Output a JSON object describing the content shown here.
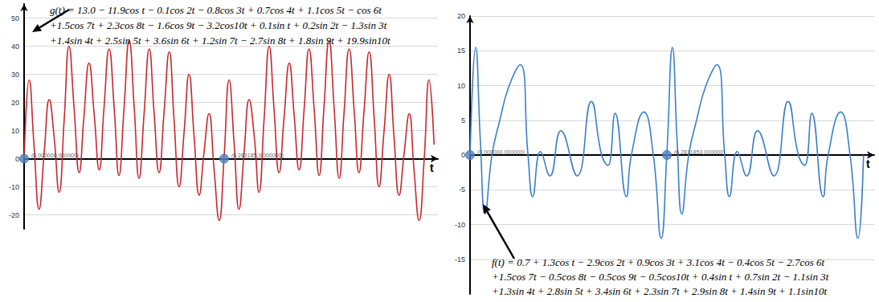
{
  "chart_data": [
    {
      "type": "line",
      "annotations": [
        "g(t) = 13.0 − 11.9cos t − 0.1cos 2t − 0.8cos 3t + 0.7cos 4t + 1.1cos 5t − cos 6t",
        "+1.5cos 7t + 2.3cos 8t − 1.6cos 9t − 3.2cos10t + 0.1sin t + 0.2sin 2t − 1.3sin 3t",
        "+1.4sin 4t + 2.5sin 5t + 3.6sin 6t + 1.2sin 7t − 2.7sin 8t + 1.8sin 9t + 19.9sin10t"
      ],
      "x_label": "t",
      "x": [
        0,
        0.16,
        0.31,
        0.47,
        0.63,
        0.79,
        0.94,
        1.1,
        1.26,
        1.41,
        1.57,
        1.73,
        1.88,
        2.04,
        2.2,
        2.36,
        2.51,
        2.67,
        2.83,
        2.98,
        3.14,
        3.3,
        3.46,
        3.61,
        3.77,
        3.93,
        4.08,
        4.24,
        4.4,
        4.56,
        4.71,
        4.87,
        5.03,
        5.18,
        5.34,
        5.5,
        5.65,
        5.81,
        5.97,
        6.13,
        6.28,
        6.44,
        6.6,
        6.75,
        6.91,
        7.07,
        7.23,
        7.38,
        7.54,
        7.7,
        7.85,
        8.01,
        8.17,
        8.33,
        8.48,
        8.64,
        8.8,
        8.95,
        9.11,
        9.27,
        9.42,
        9.58,
        9.74,
        9.9,
        10.05,
        10.21,
        10.37,
        10.52,
        10.68,
        10.84,
        11.0,
        11.15,
        11.31,
        11.47,
        11.62,
        11.78,
        11.94,
        12.1,
        12.25,
        12.41,
        12.57,
        12.72,
        12.88
      ],
      "series": [
        {
          "color": "#c8282d",
          "values": [
            0,
            28,
            5,
            -18,
            2,
            21,
            8,
            -12,
            14,
            40,
            18,
            -5,
            15,
            34,
            16,
            -4,
            18,
            39,
            18,
            -6,
            18,
            42,
            18,
            -7,
            16,
            39,
            17,
            -5,
            17,
            38,
            14,
            -10,
            10,
            30,
            8,
            -13,
            2,
            16,
            -4,
            -22,
            0,
            28,
            5,
            -18,
            2,
            21,
            8,
            -12,
            14,
            40,
            18,
            -5,
            15,
            34,
            16,
            -4,
            18,
            39,
            18,
            -6,
            18,
            42,
            18,
            -7,
            16,
            39,
            17,
            -5,
            17,
            38,
            14,
            -10,
            10,
            30,
            8,
            -13,
            2,
            16,
            -4,
            -22,
            0,
            28,
            5
          ]
        }
      ],
      "points": [
        {
          "x": 0,
          "y": 0,
          "label": "(0.000000,000000)"
        },
        {
          "x": 6.283185,
          "y": 0,
          "label": "(6.283185,0.000000)"
        }
      ],
      "xlim": [
        0,
        13
      ],
      "ylim": [
        -25,
        55
      ],
      "yticks": [
        -20,
        -10,
        0,
        10,
        20,
        30,
        40,
        50
      ],
      "grid": true,
      "tick_labels": "y"
    },
    {
      "type": "line",
      "annotations": [
        "f(t) = 0.7 + 1.3cos t − 2.9cos 2t + 0.9cos 3t + 3.1cos 4t − 0.4cos 5t − 2.7cos 6t",
        "+1.5cos 7t − 0.5cos 8t − 0.5cos 9t − 0.5cos10t + 0.4sin t + 0.7sin 2t − 1.1sin 3t",
        "+1.3sin 4t + 2.8sin 5t + 3.4sin 6t + 2.3sin 7t + 2.9sin 8t + 1.4sin 9t + 1.1sin10t"
      ],
      "x_label": "t",
      "x": [
        0,
        0.18,
        0.33,
        0.48,
        0.7,
        0.95,
        1.25,
        1.6,
        1.85,
        2.0,
        2.25,
        2.55,
        2.9,
        3.42,
        3.87,
        4.2,
        4.4,
        4.63,
        4.99,
        5.15,
        5.55,
        5.85,
        6.1,
        6.28,
        6.46,
        6.61,
        6.76,
        6.98,
        7.23,
        7.53,
        7.88,
        8.13,
        8.28,
        8.53,
        8.83,
        9.18,
        9.7,
        10.15,
        10.48,
        10.68,
        10.91,
        11.27,
        11.43,
        11.83,
        12.13,
        12.38,
        12.56
      ],
      "series": [
        {
          "color": "#3b7fcc",
          "values": [
            0,
            15.5,
            2,
            -8.5,
            0,
            5,
            10,
            13,
            0,
            -6,
            0.5,
            -3,
            3.5,
            -3,
            7.7,
            0,
            -1.5,
            6,
            -6,
            0,
            6.2,
            0,
            -12,
            0,
            15.5,
            2,
            -8.5,
            0,
            5,
            10,
            13,
            0,
            -6,
            0.5,
            -3,
            3.5,
            -3,
            7.7,
            0,
            -1.5,
            6,
            -6,
            0,
            6.2,
            0,
            -12,
            0
          ]
        }
      ],
      "points": [
        {
          "x": 0,
          "y": 0,
          "label": "(0.000000,000000)"
        },
        {
          "x": 6.283185,
          "y": 0,
          "label": "(6.2831853,000000)"
        }
      ],
      "xlim": [
        0,
        12.9
      ],
      "ylim": [
        -20,
        20
      ],
      "yticks": [
        -15,
        -10,
        -5,
        0,
        5,
        10,
        15,
        20
      ],
      "grid": true,
      "tick_labels": "y"
    }
  ]
}
